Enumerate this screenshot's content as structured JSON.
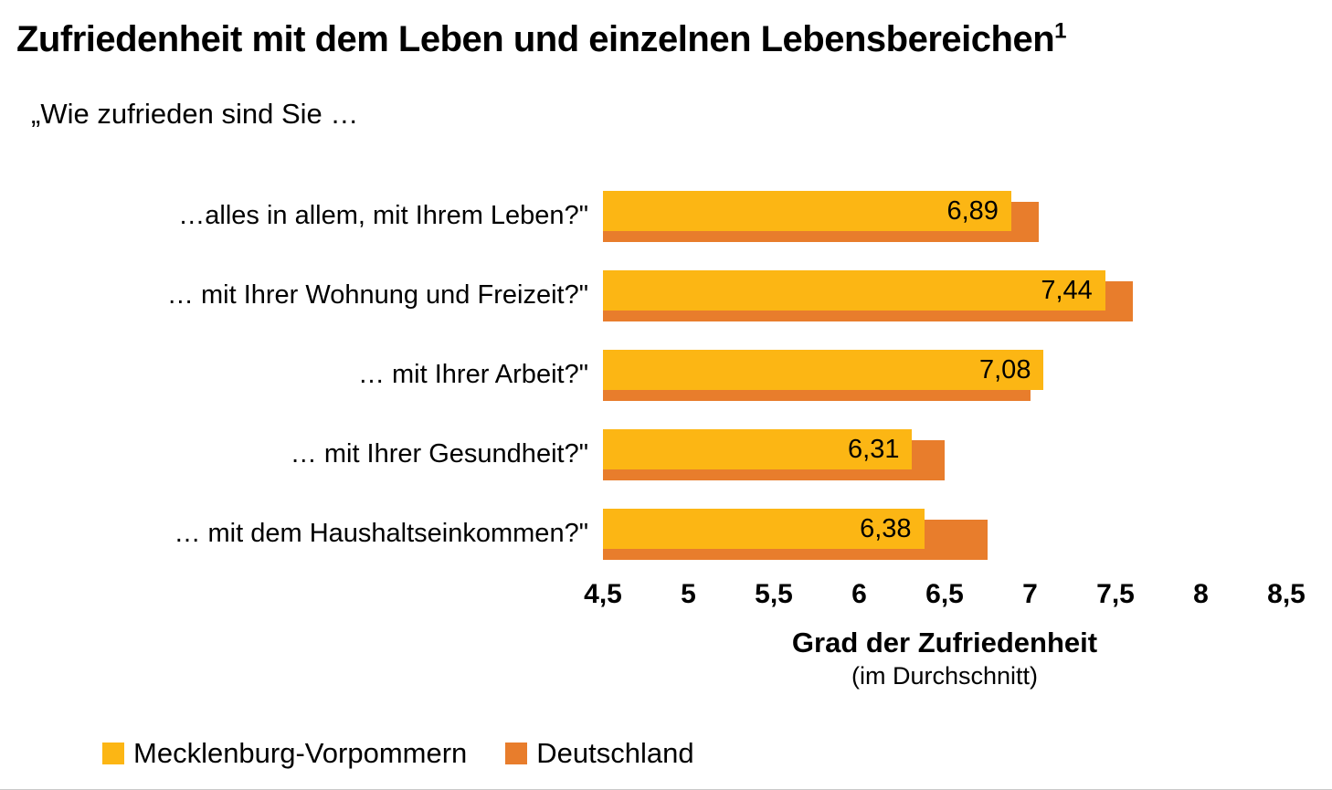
{
  "chart": {
    "title": "Zufriedenheit mit dem Leben und einzelnen Lebensbereichen",
    "title_superscript": "1",
    "subtitle": "„Wie zufrieden sind Sie …",
    "axis_title": "Grad der Zufriedenheit",
    "axis_subtitle": "(im Durchschnitt)"
  },
  "chart_data": {
    "type": "bar",
    "orientation": "horizontal",
    "categories": [
      "…alles in allem, mit Ihrem Leben?\"",
      "… mit Ihrer Wohnung und Freizeit?\"",
      "… mit Ihrer Arbeit?\"",
      "… mit Ihrer Gesundheit?\"",
      "… mit dem Haushaltseinkommen?\""
    ],
    "series": [
      {
        "name": "Mecklenburg-Vorpommern",
        "color": "#FCB614",
        "values": [
          6.89,
          7.44,
          7.08,
          6.31,
          6.38
        ],
        "value_labels": [
          "6,89",
          "7,44",
          "7,08",
          "6,31",
          "6,38"
        ]
      },
      {
        "name": "Deutschland",
        "color": "#E87D2C",
        "values": [
          7.05,
          7.6,
          7.0,
          6.5,
          6.75
        ],
        "estimated": true
      }
    ],
    "xlim": [
      4.5,
      8.5
    ],
    "x_ticks": [
      "4,5",
      "5",
      "5,5",
      "6",
      "6,5",
      "7",
      "7,5",
      "8",
      "8,5"
    ],
    "xlabel": "Grad der Zufriedenheit",
    "xlabel_note": "(im Durchschnitt)",
    "grid": false,
    "legend_position": "bottom"
  }
}
